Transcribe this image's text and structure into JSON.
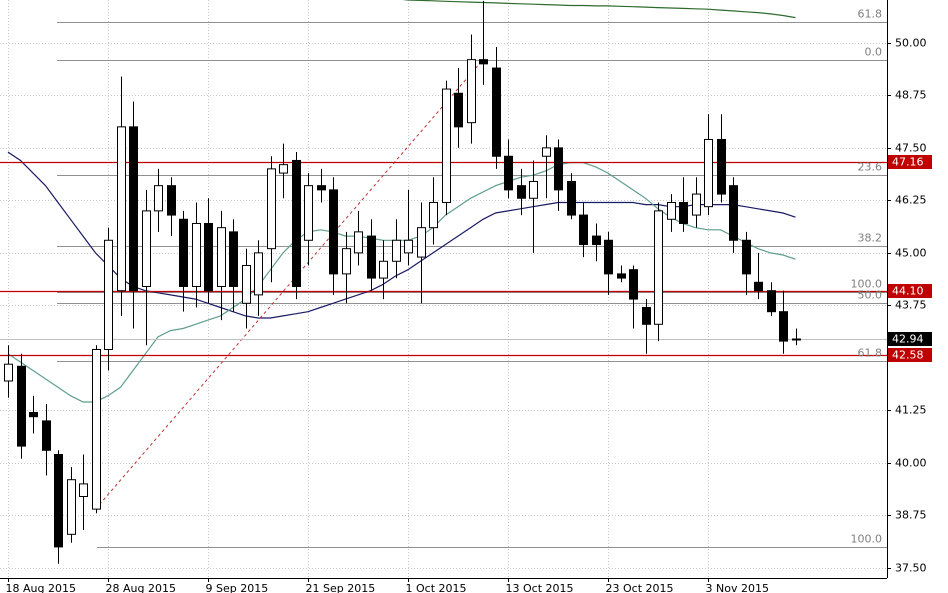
{
  "chart_data": {
    "type": "candlestick",
    "categories": [
      "18 Aug 2015",
      null,
      null,
      null,
      null,
      null,
      null,
      null,
      "28 Aug 2015",
      null,
      null,
      null,
      null,
      null,
      null,
      null,
      "9 Sep 2015",
      null,
      null,
      null,
      null,
      null,
      null,
      null,
      "21 Sep 2015",
      null,
      null,
      null,
      null,
      null,
      null,
      null,
      "1 Oct 2015",
      null,
      null,
      null,
      null,
      null,
      null,
      null,
      "13 Oct 2015",
      null,
      null,
      null,
      null,
      null,
      null,
      null,
      "23 Oct 2015",
      null,
      null,
      null,
      null,
      null,
      null,
      null,
      "3 Nov 2015",
      null,
      null,
      null,
      null,
      null,
      null,
      null
    ],
    "open": [
      41.95,
      42.3,
      41.2,
      41.0,
      40.2,
      38.3,
      39.2,
      38.9,
      42.7,
      44.1,
      48.0,
      44.2,
      46.0,
      46.6,
      45.8,
      44.2,
      45.7,
      44.2,
      45.5,
      43.8,
      44.0,
      45.1,
      46.9,
      47.2,
      45.3,
      46.6,
      46.5,
      44.5,
      45.0,
      45.4,
      44.4,
      44.8,
      45.0,
      44.9,
      45.6,
      46.2,
      48.8,
      48.1,
      49.6,
      49.4,
      47.3,
      46.6,
      46.3,
      47.3,
      47.5,
      46.7,
      45.9,
      45.4,
      45.3,
      44.5,
      44.6,
      43.7,
      43.3,
      45.8,
      46.2,
      45.9,
      46.1,
      47.7,
      46.6,
      45.3,
      44.3,
      44.1,
      43.6,
      42.95
    ],
    "high": [
      42.8,
      42.6,
      41.6,
      41.4,
      40.3,
      39.9,
      40.2,
      42.8,
      45.6,
      49.2,
      48.6,
      46.5,
      47.0,
      46.8,
      46.0,
      46.2,
      46.3,
      46.0,
      45.8,
      45.1,
      45.3,
      47.3,
      47.6,
      47.4,
      46.9,
      47.0,
      46.8,
      45.5,
      46.0,
      45.8,
      45.3,
      45.8,
      46.5,
      46.2,
      46.8,
      49.1,
      49.4,
      50.2,
      51.0,
      49.9,
      47.7,
      47.0,
      47.2,
      47.8,
      47.7,
      46.9,
      46.2,
      45.7,
      45.5,
      44.7,
      44.7,
      43.9,
      46.2,
      46.4,
      46.8,
      46.8,
      48.3,
      48.3,
      46.8,
      45.5,
      45.0,
      44.3,
      44.1,
      43.2
    ],
    "low": [
      41.55,
      40.1,
      40.7,
      39.7,
      37.6,
      38.1,
      38.4,
      38.8,
      42.2,
      43.5,
      43.2,
      42.8,
      45.5,
      45.4,
      43.6,
      43.7,
      43.8,
      43.4,
      43.6,
      43.2,
      43.5,
      44.3,
      46.3,
      43.9,
      44.7,
      46.2,
      44.0,
      43.8,
      44.7,
      44.1,
      43.9,
      44.4,
      44.7,
      43.8,
      45.2,
      45.9,
      47.5,
      47.6,
      49.0,
      47.0,
      46.3,
      45.9,
      45.0,
      46.3,
      46.0,
      45.8,
      44.9,
      44.8,
      44.0,
      44.3,
      43.2,
      42.6,
      42.9,
      45.5,
      45.5,
      45.6,
      45.9,
      46.2,
      45.0,
      44.0,
      43.9,
      43.5,
      42.6,
      42.8
    ],
    "close": [
      42.35,
      40.4,
      41.1,
      40.3,
      38.0,
      39.6,
      39.5,
      42.7,
      45.3,
      48.0,
      44.1,
      46.0,
      46.6,
      45.9,
      44.2,
      45.7,
      44.1,
      45.6,
      44.2,
      44.7,
      45.0,
      47.0,
      47.1,
      44.2,
      46.6,
      46.5,
      44.5,
      45.1,
      45.5,
      44.4,
      44.8,
      45.3,
      45.3,
      45.6,
      46.2,
      48.9,
      48.0,
      49.6,
      49.5,
      47.3,
      46.5,
      46.3,
      46.7,
      47.5,
      46.5,
      45.9,
      45.2,
      45.2,
      44.5,
      44.4,
      43.9,
      43.3,
      46.0,
      46.2,
      45.7,
      46.4,
      47.7,
      46.4,
      45.3,
      44.5,
      44.1,
      43.6,
      42.9,
      42.94
    ],
    "up_color": "#ffffff",
    "down_color": "#000000",
    "lines": [
      {
        "color": "#1a1a66",
        "values": [
          47.4,
          47.2,
          46.9,
          46.6,
          46.2,
          45.8,
          45.4,
          45.0,
          44.7,
          44.4,
          44.2,
          44.1,
          44.05,
          44.0,
          43.95,
          43.9,
          43.8,
          43.7,
          43.6,
          43.5,
          43.45,
          43.45,
          43.5,
          43.55,
          43.6,
          43.7,
          43.8,
          43.9,
          44.0,
          44.1,
          44.25,
          44.45,
          44.6,
          44.8,
          45.0,
          45.2,
          45.4,
          45.6,
          45.8,
          45.95,
          46.0,
          46.05,
          46.1,
          46.15,
          46.2,
          46.2,
          46.2,
          46.2,
          46.2,
          46.2,
          46.2,
          46.15,
          46.15,
          46.1,
          46.1,
          46.15,
          46.15,
          46.15,
          46.15,
          46.1,
          46.05,
          46.0,
          45.95,
          45.85
        ]
      },
      {
        "color": "#5f9e8f",
        "values": [
          42.6,
          42.4,
          42.2,
          42.0,
          41.8,
          41.6,
          41.45,
          41.45,
          41.6,
          41.8,
          42.2,
          42.6,
          43.0,
          43.15,
          43.2,
          43.3,
          43.4,
          43.5,
          43.7,
          43.9,
          44.2,
          44.6,
          45.0,
          45.3,
          45.5,
          45.55,
          45.5,
          45.4,
          45.4,
          45.35,
          45.3,
          45.3,
          45.3,
          45.4,
          45.6,
          45.9,
          46.1,
          46.3,
          46.45,
          46.6,
          46.7,
          46.8,
          46.85,
          46.95,
          47.1,
          47.15,
          47.15,
          47.05,
          46.9,
          46.7,
          46.5,
          46.3,
          46.05,
          45.85,
          45.7,
          45.6,
          45.55,
          45.55,
          45.4,
          45.25,
          45.1,
          45.0,
          44.95,
          44.85
        ]
      },
      {
        "color": "#2e6b2e",
        "values": [
          null,
          null,
          null,
          null,
          null,
          null,
          null,
          null,
          null,
          null,
          null,
          null,
          null,
          null,
          null,
          null,
          null,
          null,
          null,
          null,
          null,
          null,
          null,
          null,
          null,
          null,
          null,
          null,
          null,
          null,
          null,
          51.05,
          51.02,
          51.01,
          51.0,
          50.99,
          50.98,
          50.97,
          50.96,
          50.95,
          50.94,
          50.93,
          50.92,
          50.91,
          50.9,
          50.89,
          50.89,
          50.88,
          50.88,
          50.87,
          50.86,
          50.85,
          50.84,
          50.83,
          50.82,
          50.81,
          50.8,
          50.78,
          50.76,
          50.74,
          50.72,
          50.69,
          50.65,
          50.6
        ]
      }
    ],
    "levels": [
      47.16,
      {
        "value": 44.1,
        "label": "44.10"
      },
      42.58
    ],
    "level_color": "#c00000",
    "last_price": 42.94,
    "fib_levels": [
      {
        "label": "61.8",
        "price": 50.5
      },
      {
        "label": "0.0",
        "price": 49.6
      },
      {
        "label": "23.6",
        "price": 46.86
      },
      {
        "label": "38.2",
        "price": 45.17
      },
      {
        "label": "100.0",
        "price": 44.07
      },
      {
        "label": "50.0",
        "price": 43.8
      },
      {
        "label": "61.8",
        "price": 42.43
      },
      {
        "label": "100.0",
        "price": 38.0
      }
    ],
    "trendline": {
      "x": [
        7,
        38
      ],
      "y": [
        38.9,
        49.6
      ],
      "color": "#c03030"
    },
    "ylim": [
      37.26,
      51.02
    ],
    "yticks": [
      {
        "value": 37.5,
        "label": "37.50"
      },
      {
        "value": 38.75,
        "label": "38.75"
      },
      {
        "value": 40,
        "label": "40.00"
      },
      {
        "value": 41.25,
        "label": "41.25"
      },
      {
        "value": 43.75,
        "label": "43.75"
      },
      {
        "value": 45,
        "label": "45.00"
      },
      {
        "value": 46.25,
        "label": "46.25"
      },
      {
        "value": 47.5,
        "label": "47.50"
      },
      {
        "value": 48.75,
        "label": "48.75"
      },
      {
        "value": 50,
        "label": "50.00"
      }
    ],
    "grid": true
  }
}
